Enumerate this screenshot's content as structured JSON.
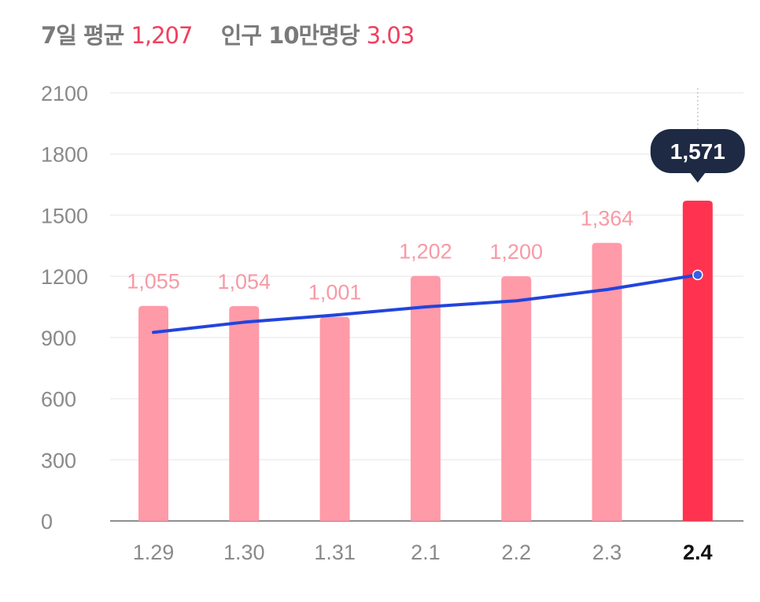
{
  "header": {
    "avg_label": "7일 평균",
    "avg_value": "1,207",
    "per_label": "인구 10만명당",
    "per_value": "3.03"
  },
  "colors": {
    "bar": "#ff9aa8",
    "bar_highlight": "#ff3350",
    "bar_label": "#f79aa6",
    "line": "#2244dd",
    "tooltip_bg": "#1e2a44",
    "tooltip_text": "#ffffff",
    "axis_text": "#8a8a8a",
    "grid": "#eeeeee"
  },
  "chart_data": {
    "type": "bar",
    "categories": [
      "1.29",
      "1.30",
      "1.31",
      "2.1",
      "2.2",
      "2.3",
      "2.4"
    ],
    "values": [
      1055,
      1054,
      1001,
      1202,
      1200,
      1364,
      1571
    ],
    "value_labels": [
      "1,055",
      "1,054",
      "1,001",
      "1,202",
      "1,200",
      "1,364",
      "1,571"
    ],
    "highlight_index": 6,
    "series": [
      {
        "values": [
          1055,
          1054,
          1001,
          1202,
          1200,
          1364,
          1571
        ]
      },
      {
        "type": "line",
        "values": [
          925,
          975,
          1010,
          1050,
          1080,
          1135,
          1207
        ]
      }
    ],
    "ylim": [
      0,
      2100
    ],
    "yticks": [
      "0",
      "300",
      "600",
      "900",
      "1200",
      "1500",
      "1800",
      "2100"
    ],
    "ytick_values": [
      0,
      300,
      600,
      900,
      1200,
      1500,
      1800,
      2100
    ],
    "tooltip": "1,571",
    "grid": true
  }
}
